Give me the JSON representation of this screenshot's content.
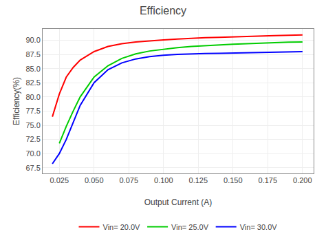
{
  "chart_data": {
    "type": "line",
    "title": "Efficiency",
    "x_label": "Output Current (A)",
    "y_label": "Efficiency(%)",
    "xlim": [
      0.013,
      0.208
    ],
    "ylim": [
      66.5,
      92.0
    ],
    "xticks": [
      0.025,
      {
        "value": 0.05,
        "label": "0.050"
      },
      0.075,
      {
        "value": 0.1,
        "label": "0.100"
      },
      0.125,
      {
        "value": 0.15,
        "label": "0.150"
      },
      0.175,
      {
        "value": 0.2,
        "label": "0.200"
      }
    ],
    "yticks": [
      67.5,
      {
        "value": 70,
        "label": "70.0"
      },
      72.5,
      {
        "value": 75,
        "label": "75.0"
      },
      77.5,
      {
        "value": 80,
        "label": "80.0"
      },
      82.5,
      {
        "value": 85,
        "label": "85.0"
      },
      87.5,
      {
        "value": 90,
        "label": "90.0"
      }
    ],
    "grid": true,
    "legend": "bottom",
    "series": [
      {
        "name": "Vin= 20.0V",
        "color": "#ff0000",
        "x": [
          0.02,
          0.025,
          0.03,
          0.035,
          0.04,
          0.05,
          0.06,
          0.07,
          0.08,
          0.09,
          0.1,
          0.11,
          0.12,
          0.13,
          0.14,
          0.15,
          0.16,
          0.17,
          0.18,
          0.19,
          0.2
        ],
        "values": [
          76.5,
          80.5,
          83.5,
          85.2,
          86.5,
          88.0,
          88.9,
          89.4,
          89.7,
          89.9,
          90.05,
          90.2,
          90.35,
          90.45,
          90.5,
          90.6,
          90.7,
          90.75,
          90.82,
          90.88,
          90.95
        ]
      },
      {
        "name": "Vin= 25.0V",
        "color": "#00cc00",
        "x": [
          0.025,
          0.03,
          0.035,
          0.04,
          0.05,
          0.06,
          0.07,
          0.08,
          0.09,
          0.1,
          0.11,
          0.12,
          0.13,
          0.14,
          0.15,
          0.16,
          0.17,
          0.18,
          0.19,
          0.2
        ],
        "values": [
          71.8,
          74.8,
          77.5,
          80.0,
          83.5,
          85.5,
          86.8,
          87.6,
          88.1,
          88.4,
          88.7,
          88.9,
          89.05,
          89.2,
          89.3,
          89.4,
          89.5,
          89.6,
          89.65,
          89.7
        ]
      },
      {
        "name": "Vin= 30.0V",
        "color": "#0000ff",
        "x": [
          0.02,
          0.025,
          0.03,
          0.035,
          0.04,
          0.05,
          0.06,
          0.07,
          0.08,
          0.09,
          0.1,
          0.11,
          0.12,
          0.13,
          0.14,
          0.15,
          0.16,
          0.17,
          0.18,
          0.19,
          0.2
        ],
        "values": [
          68.2,
          70.0,
          72.5,
          75.5,
          78.5,
          82.5,
          84.8,
          86.0,
          86.7,
          87.1,
          87.35,
          87.5,
          87.6,
          87.65,
          87.7,
          87.75,
          87.8,
          87.85,
          87.9,
          87.95,
          88.0
        ]
      }
    ]
  }
}
